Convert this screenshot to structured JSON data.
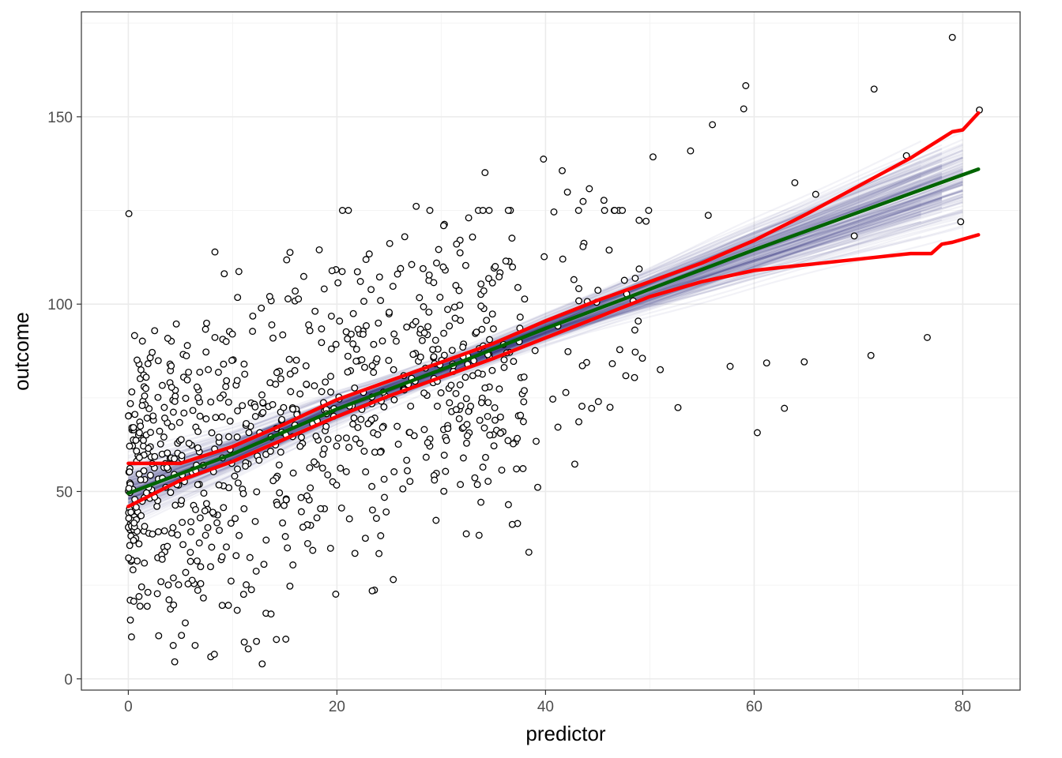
{
  "chart_data": {
    "type": "scatter",
    "xlabel": "predictor",
    "ylabel": "outcome",
    "xlim": [
      -4.5,
      85.5
    ],
    "ylim": [
      -3,
      178
    ],
    "x_ticks": [
      0,
      20,
      40,
      60,
      80
    ],
    "x_tick_labels": [
      "0",
      "20",
      "40",
      "60",
      "80"
    ],
    "y_ticks": [
      0,
      50,
      100,
      150
    ],
    "y_tick_labels": [
      "0",
      "50",
      "100",
      "150"
    ],
    "grid": true,
    "legend": "none",
    "colors": {
      "points_edge": "#000000",
      "points_fill": "#ffffff",
      "bootstrap_lines": "#1a237e",
      "fit_line": "#006400",
      "interval_lines": "#ff0000",
      "grid_major": "#ebebeb",
      "grid_minor": "#f4f4f4",
      "panel_border": "#333333"
    },
    "scatter": {
      "n_points": 900,
      "x": [
        0.2,
        0.3,
        0.6,
        0.8,
        1.0,
        1.4,
        1.8,
        2.1,
        2.5,
        3.0,
        3.4,
        3.9,
        4.0,
        4.3,
        4.6,
        5.1,
        5.5,
        6.0,
        6.3,
        6.8,
        7.2,
        7.4,
        7.6,
        7.9,
        8.3,
        8.7,
        9.0,
        9.4,
        9.7,
        10.2,
        10.6,
        11.1,
        11.5,
        11.8,
        12.3,
        12.6,
        13.2,
        13.7,
        14.2,
        14.6,
        15.1,
        15.5,
        16.0,
        16.7,
        17.2,
        17.9,
        18.3,
        18.8,
        19.5,
        19.9,
        20.5,
        21.2,
        21.8,
        22.5,
        23.1,
        23.6,
        24.2,
        25.0,
        25.4,
        26.1,
        27.0,
        27.6,
        28.3,
        28.9,
        29.5,
        30.3,
        31.1,
        31.8,
        32.4,
        33.0,
        34.2,
        35.0,
        35.8,
        36.5,
        37.4,
        38.4,
        39.1,
        39.8,
        40.8,
        41.6,
        42.1,
        42.8,
        43.6,
        44.2,
        44.9,
        45.6,
        46.4,
        47.7,
        48.6,
        50.3,
        51.0,
        52.7,
        53.9,
        55.6,
        56.0,
        57.7,
        59.0,
        59.2,
        60.3,
        61.2,
        62.9,
        63.9,
        64.8,
        65.9,
        69.6,
        71.2,
        71.5,
        74.6,
        76.6,
        79.0,
        79.8,
        81.6
      ],
      "y": [
        15.7,
        11.2,
        91.6,
        58.1,
        43.4,
        74.1,
        69.6,
        85.7,
        56.3,
        66.1,
        35.1,
        21.1,
        84.0,
        8.9,
        94.7,
        11.6,
        28.4,
        41.9,
        25.4,
        60.6,
        21.6,
        93.3,
        45.2,
        5.9,
        91.1,
        63.2,
        19.6,
        35.2,
        92.7,
        54.1,
        108.7,
        84.0,
        8.0,
        23.8,
        49.9,
        65.7,
        17.5,
        100.9,
        10.5,
        71.2,
        10.6,
        113.8,
        103.5,
        62.8,
        36.1,
        98.1,
        114.5,
        45.4,
        71.6,
        109.2,
        108.7,
        42.7,
        64.0,
        92.8,
        113.4,
        23.7,
        38.2,
        97.4,
        26.5,
        109.5,
        52.7,
        126.1,
        99.3,
        62.1,
        42.3,
        121.3,
        84.0,
        113.7,
        38.7,
        117.9,
        135.1,
        93.4,
        55.7,
        111.4,
        70.2,
        33.8,
        63.4,
        138.7,
        124.6,
        135.6,
        129.9,
        57.3,
        127.4,
        130.8,
        100.5,
        127.7,
        84.1,
        80.9,
        87.2,
        139.3,
        82.5,
        72.4,
        140.9,
        123.7,
        147.9,
        83.4,
        152.1,
        158.3,
        65.7,
        84.3,
        72.2,
        132.4,
        84.6,
        129.3,
        118.2,
        86.3,
        157.4,
        139.6,
        91.1,
        171.2,
        122.0,
        151.8
      ]
    },
    "bootstrap_lines_count": 200,
    "fit_line": {
      "x": [
        0,
        10,
        20,
        30,
        40,
        50,
        60,
        70,
        81.5
      ],
      "y": [
        49.5,
        60.0,
        72.0,
        82.5,
        93.5,
        104.0,
        114.5,
        124.5,
        136.0
      ]
    },
    "upper_interval": {
      "x": [
        0,
        5,
        10,
        15,
        20,
        25,
        30,
        35,
        40,
        45,
        50,
        55,
        60,
        65,
        70,
        75,
        79,
        80,
        81.5
      ],
      "y": [
        57.5,
        57.5,
        62.0,
        68.0,
        74.5,
        79.5,
        84.5,
        89.5,
        95.5,
        101.0,
        106.0,
        111.0,
        117.0,
        124.0,
        131.5,
        139.0,
        146.0,
        146.5,
        151.0
      ]
    },
    "lower_interval": {
      "x": [
        0,
        5,
        10,
        15,
        20,
        25,
        30,
        35,
        40,
        45,
        50,
        55,
        60,
        65,
        70,
        75,
        77,
        78,
        79,
        81.5
      ],
      "y": [
        46.0,
        53.0,
        58.0,
        64.0,
        70.0,
        75.5,
        80.5,
        85.5,
        91.0,
        96.5,
        102.0,
        106.0,
        109.0,
        110.5,
        112.0,
        113.5,
        113.5,
        116.0,
        116.5,
        118.5
      ]
    }
  }
}
